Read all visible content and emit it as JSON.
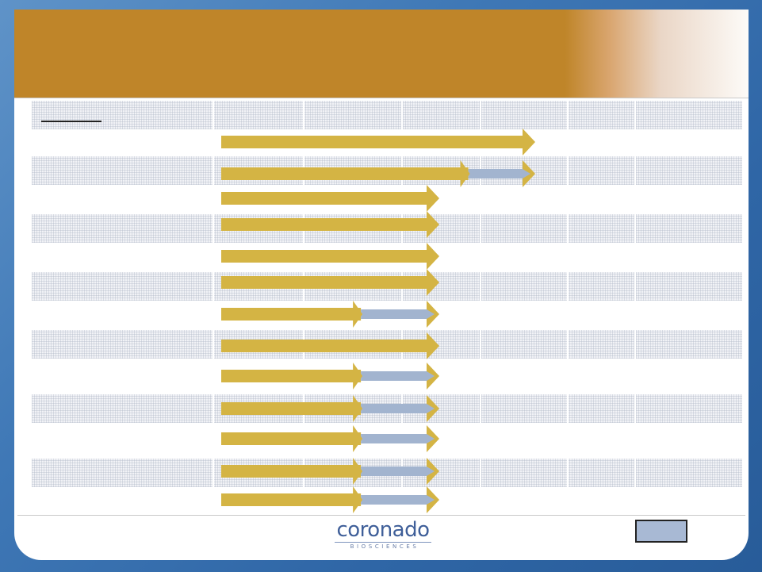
{
  "slide": {
    "header_title": "",
    "page_number": ""
  },
  "logo": {
    "name": "coronado",
    "tagline": "BIOSCIENCES"
  },
  "colors": {
    "header_gold": "#bf8529",
    "arrow_gold": "#d4b444",
    "arrow_blue": "#a2b4cf",
    "slide_background": "#3f78b6",
    "logo_blue": "#3f5f99"
  },
  "pipeline_rows": [
    {
      "completed_fraction": 1.0,
      "in_progress_fraction": 0.0,
      "reach": "long"
    },
    {
      "completed_fraction": 0.82,
      "in_progress_fraction": 0.18,
      "reach": "long"
    },
    {
      "completed_fraction": 1.0,
      "in_progress_fraction": 0.0,
      "reach": "short"
    },
    {
      "completed_fraction": 1.0,
      "in_progress_fraction": 0.0,
      "reach": "short"
    },
    {
      "completed_fraction": 1.0,
      "in_progress_fraction": 0.0,
      "reach": "short"
    },
    {
      "completed_fraction": 1.0,
      "in_progress_fraction": 0.0,
      "reach": "short"
    },
    {
      "completed_fraction": 0.68,
      "in_progress_fraction": 0.32,
      "reach": "short"
    },
    {
      "completed_fraction": 1.0,
      "in_progress_fraction": 0.0,
      "reach": "short"
    },
    {
      "completed_fraction": 0.68,
      "in_progress_fraction": 0.32,
      "reach": "short"
    },
    {
      "completed_fraction": 0.68,
      "in_progress_fraction": 0.32,
      "reach": "short"
    },
    {
      "completed_fraction": 0.68,
      "in_progress_fraction": 0.32,
      "reach": "short"
    },
    {
      "completed_fraction": 0.68,
      "in_progress_fraction": 0.32,
      "reach": "short"
    },
    {
      "completed_fraction": 0.68,
      "in_progress_fraction": 0.32,
      "reach": "short"
    }
  ]
}
